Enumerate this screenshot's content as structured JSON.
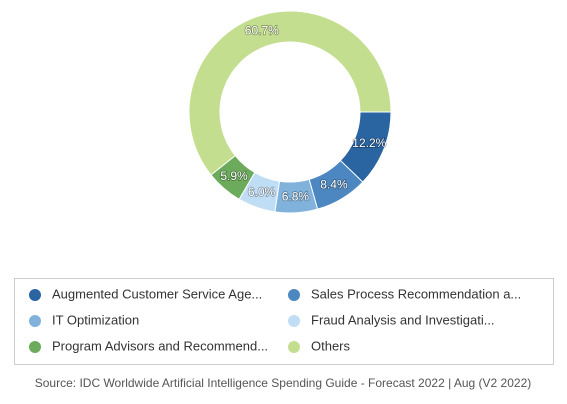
{
  "chart_data": {
    "type": "donut",
    "categories": [
      "Augmented Customer Service Age...",
      "Sales Process Recommendation a...",
      "IT Optimization",
      "Fraud Analysis and Investigati...",
      "Program Advisors and Recommend...",
      "Others"
    ],
    "values": [
      12.2,
      8.4,
      6.8,
      6.0,
      5.9,
      60.7
    ],
    "value_labels": [
      "12.2%",
      "8.4%",
      "6.8%",
      "6.0%",
      "5.9%",
      "60.7%"
    ],
    "colors": [
      "#2a65a2",
      "#4d87c1",
      "#80b2dc",
      "#c0ddf6",
      "#6bab5b",
      "#c4de8f"
    ],
    "legend": "bottom",
    "source": "Source: IDC Worldwide Artificial Intelligence Spending Guide - Forecast 2022 | Aug (V2 2022)"
  }
}
